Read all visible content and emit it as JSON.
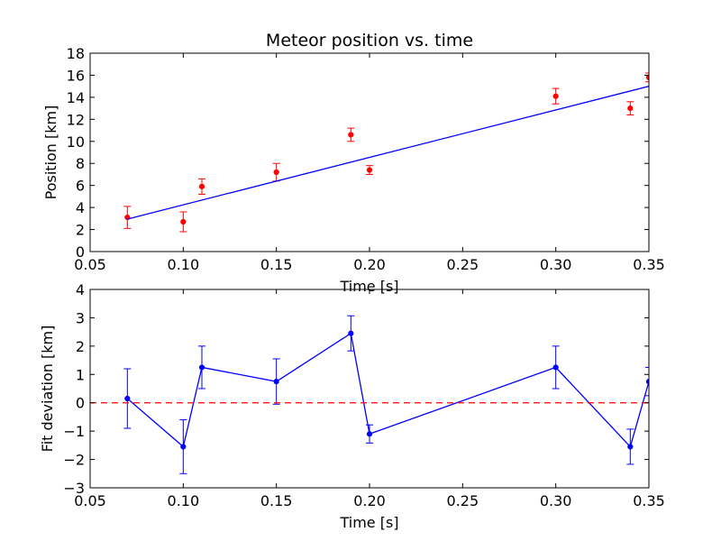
{
  "chart_data": [
    {
      "type": "scatter",
      "title": "Meteor position vs. time",
      "xlabel": "Time [s]",
      "ylabel": "Position [km]",
      "xlim": [
        0.05,
        0.35
      ],
      "ylim": [
        0,
        18
      ],
      "xticks": [
        "0.05",
        "0.10",
        "0.15",
        "0.20",
        "0.25",
        "0.30",
        "0.35"
      ],
      "yticks": [
        "0",
        "2",
        "4",
        "6",
        "8",
        "10",
        "12",
        "14",
        "16",
        "18"
      ],
      "grid": false,
      "series": [
        {
          "kind": "errorbar-points",
          "color": "#ff0000",
          "x": [
            0.07,
            0.1,
            0.11,
            0.15,
            0.19,
            0.2,
            0.3,
            0.34,
            0.35
          ],
          "y": [
            3.1,
            2.7,
            5.9,
            7.2,
            10.6,
            7.4,
            14.1,
            13.0,
            15.8
          ],
          "yerr": [
            1.0,
            0.9,
            0.7,
            0.8,
            0.6,
            0.4,
            0.7,
            0.6,
            0.4
          ]
        },
        {
          "kind": "fit-line",
          "color": "#0000ff",
          "x": [
            0.07,
            0.35
          ],
          "y": [
            2.95,
            15.0
          ]
        }
      ]
    },
    {
      "type": "line",
      "title": "",
      "xlabel": "Time [s]",
      "ylabel": "Fit deviation [km]",
      "xlim": [
        0.05,
        0.35
      ],
      "ylim": [
        -3,
        4
      ],
      "xticks": [
        "0.05",
        "0.10",
        "0.15",
        "0.20",
        "0.25",
        "0.30",
        "0.35"
      ],
      "yticks": [
        "−3",
        "−2",
        "−1",
        "0",
        "1",
        "2",
        "3",
        "4"
      ],
      "grid": false,
      "series": [
        {
          "kind": "errorbar-line",
          "color": "#0000ff",
          "x": [
            0.07,
            0.1,
            0.11,
            0.15,
            0.19,
            0.2,
            0.3,
            0.34,
            0.35
          ],
          "y": [
            0.15,
            -1.55,
            1.25,
            0.75,
            2.45,
            -1.1,
            1.25,
            -1.55,
            0.75
          ],
          "yerr": [
            1.05,
            0.95,
            0.75,
            0.8,
            0.62,
            0.32,
            0.75,
            0.62,
            0.5
          ]
        },
        {
          "kind": "reference-line",
          "color": "#ff0000",
          "dashed": true,
          "y": 0
        }
      ]
    }
  ]
}
